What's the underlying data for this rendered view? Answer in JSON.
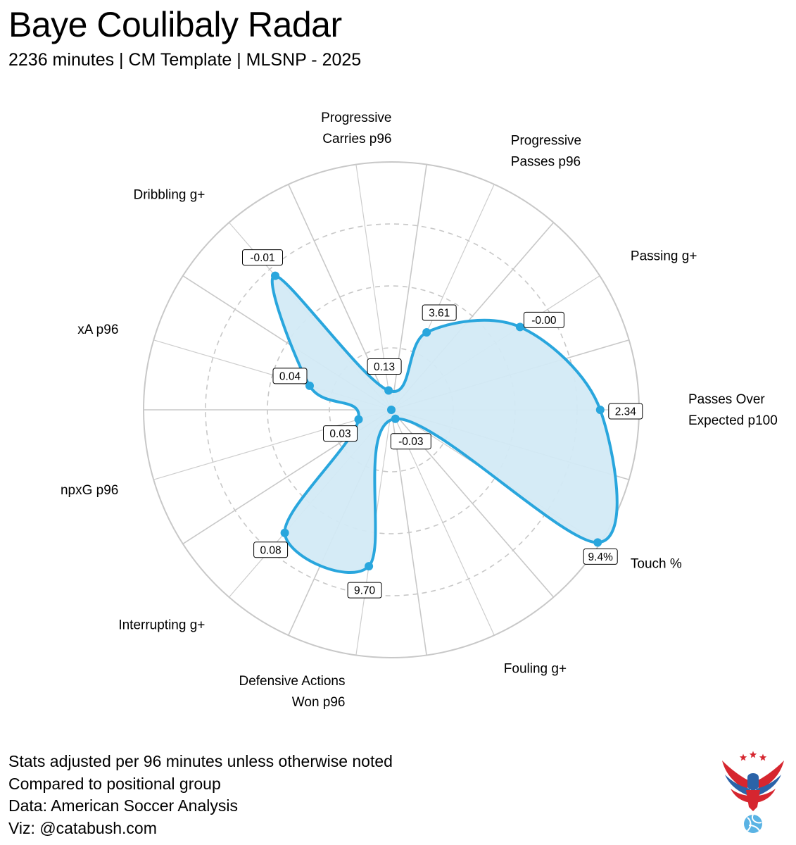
{
  "title": "Baye Coulibaly Radar",
  "subtitle": "2236 minutes | CM Template | MLSNP - 2025",
  "colors": {
    "accent": "#29a6dd",
    "fill": "#d3eaf6",
    "grid": "#c8c8c8",
    "logo_red": "#d6262f",
    "logo_blue": "#2b63a8",
    "logo_light_blue": "#5ab3e4"
  },
  "chart_data": {
    "type": "radar",
    "grid": true,
    "axes": [
      {
        "label": [
          "Passes Over",
          "Expected p100"
        ],
        "value_label": "2.34",
        "percentile": 84
      },
      {
        "label": [
          "Touch %"
        ],
        "value_label": "9.4%",
        "percentile": 99
      },
      {
        "label": [
          "Fouling g+"
        ],
        "value_label": "-0.03",
        "percentile": 2
      },
      {
        "label": [
          "Defensive Actions",
          "Won p96"
        ],
        "value_label": "9.70",
        "percentile": 63
      },
      {
        "label": [
          "Interrupting g+"
        ],
        "value_label": "0.08",
        "percentile": 65
      },
      {
        "label": [
          "npxG p96"
        ],
        "value_label": "0.03",
        "percentile": 12
      },
      {
        "label": [
          "xA p96"
        ],
        "value_label": "0.04",
        "percentile": 33
      },
      {
        "label": [
          "Dribbling g+"
        ],
        "value_label": "-0.01",
        "percentile": 71
      },
      {
        "label": [
          "Progressive",
          "Carries p96"
        ],
        "value_label": "0.13",
        "percentile": 6
      },
      {
        "label": [
          "Progressive",
          "Passes p96"
        ],
        "value_label": "3.61",
        "percentile": 33
      },
      {
        "label": [
          "Passing g+"
        ],
        "value_label": "-0.00",
        "percentile": 61
      }
    ]
  },
  "footer": {
    "lines": [
      "Stats adjusted per 96 minutes unless otherwise noted",
      "Compared to positional group",
      "Data: American Soccer Analysis",
      "Viz: @catabush.com"
    ]
  },
  "logo": {
    "icon": "eagle-soccer-logo-icon"
  }
}
